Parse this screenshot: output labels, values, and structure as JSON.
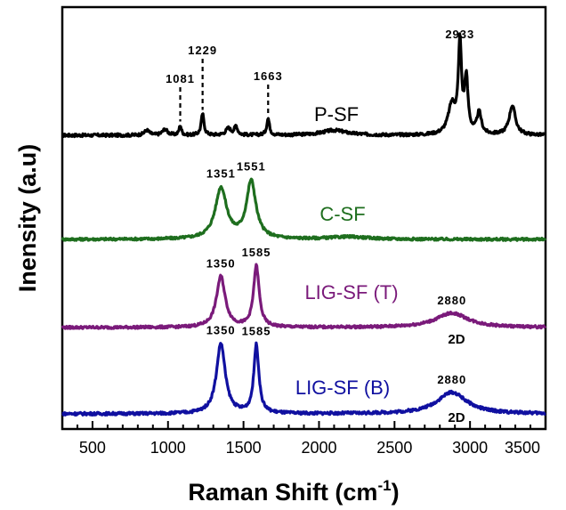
{
  "chart_data": {
    "type": "line",
    "xlabel_main": "Raman Shift (cm",
    "xlabel_sup": "-1",
    "xlabel_close": ")",
    "ylabel": "Inensity (a.u)",
    "xlim": [
      300,
      3500
    ],
    "x_ticks": [
      500,
      1000,
      1500,
      2000,
      2500,
      3000,
      3500
    ],
    "x_tick_labels": [
      "500",
      "1000",
      "1500",
      "2000",
      "2500",
      "3000",
      "3500"
    ],
    "grid": false,
    "series": [
      {
        "name": "P-SF",
        "color": "#000000",
        "baseline": 0.0,
        "peaks": [
          {
            "x": 860,
            "h": 0.05,
            "w": 40
          },
          {
            "x": 980,
            "h": 0.06,
            "w": 40
          },
          {
            "x": 1081,
            "h": 0.1,
            "w": 18
          },
          {
            "x": 1229,
            "h": 0.22,
            "w": 22
          },
          {
            "x": 1400,
            "h": 0.07,
            "w": 40
          },
          {
            "x": 1450,
            "h": 0.09,
            "w": 25
          },
          {
            "x": 1663,
            "h": 0.17,
            "w": 22
          },
          {
            "x": 2100,
            "h": 0.05,
            "w": 200
          },
          {
            "x": 2880,
            "h": 0.3,
            "w": 60
          },
          {
            "x": 2933,
            "h": 0.9,
            "w": 25
          },
          {
            "x": 2975,
            "h": 0.55,
            "w": 28
          },
          {
            "x": 3060,
            "h": 0.22,
            "w": 35
          },
          {
            "x": 3280,
            "h": 0.3,
            "w": 50
          }
        ]
      },
      {
        "name": "C-SF",
        "color": "#1e6e1e",
        "baseline": 0.0,
        "peaks": [
          {
            "x": 1351,
            "h": 0.62,
            "w": 90
          },
          {
            "x": 1551,
            "h": 0.7,
            "w": 75
          },
          {
            "x": 2200,
            "h": 0.03,
            "w": 300
          }
        ]
      },
      {
        "name": "LIG-SF (T)",
        "color": "#7a1a7a",
        "baseline": 0.0,
        "peaks": [
          {
            "x": 1350,
            "h": 0.6,
            "w": 70
          },
          {
            "x": 1585,
            "h": 0.72,
            "w": 45
          },
          {
            "x": 2880,
            "h": 0.17,
            "w": 260
          }
        ]
      },
      {
        "name": "LIG-SF (B)",
        "color": "#1010a0",
        "baseline": 0.0,
        "peaks": [
          {
            "x": 1350,
            "h": 0.75,
            "w": 70
          },
          {
            "x": 1585,
            "h": 0.73,
            "w": 40
          },
          {
            "x": 2880,
            "h": 0.23,
            "w": 240
          }
        ]
      }
    ],
    "peak_labels": [
      {
        "series": 0,
        "text": "1081",
        "x": 1081
      },
      {
        "series": 0,
        "text": "1229",
        "x": 1229
      },
      {
        "series": 0,
        "text": "1663",
        "x": 1663
      },
      {
        "series": 0,
        "text": "2933",
        "x": 2933
      },
      {
        "series": 1,
        "text": "1351",
        "x": 1351
      },
      {
        "series": 1,
        "text": "1551",
        "x": 1551
      },
      {
        "series": 2,
        "text": "1350",
        "x": 1350
      },
      {
        "series": 2,
        "text": "1585",
        "x": 1585
      },
      {
        "series": 2,
        "text": "2880",
        "x": 2880
      },
      {
        "series": 3,
        "text": "1350",
        "x": 1350
      },
      {
        "series": 3,
        "text": "1585",
        "x": 1585
      },
      {
        "series": 3,
        "text": "2880",
        "x": 2880
      }
    ],
    "twod_labels": [
      {
        "series": 2,
        "text": "2D"
      },
      {
        "series": 3,
        "text": "2D"
      }
    ]
  }
}
